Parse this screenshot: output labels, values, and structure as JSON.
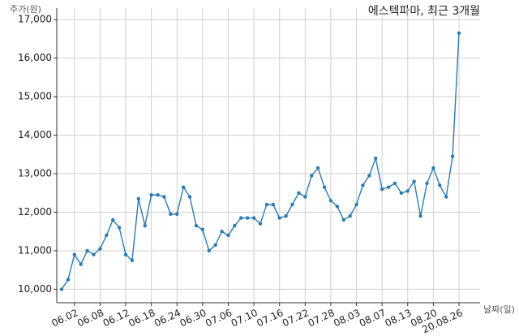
{
  "chart_data": {
    "type": "line",
    "title": "에스텍파마, 최근 3개월",
    "y_label": "주가(원)",
    "x_label": "날짜(일)",
    "categories": [
      null,
      null,
      "06.02",
      null,
      null,
      null,
      "06.08",
      null,
      null,
      null,
      "06.12",
      null,
      null,
      null,
      "06.18",
      null,
      null,
      null,
      "06.24",
      null,
      null,
      null,
      "06.30",
      null,
      null,
      null,
      "07.06",
      null,
      null,
      null,
      "07.10",
      null,
      null,
      null,
      "07.16",
      null,
      null,
      null,
      "07.22",
      null,
      null,
      null,
      "07.28",
      null,
      null,
      null,
      "08.03",
      null,
      null,
      null,
      "08.07",
      null,
      null,
      null,
      "08.13",
      null,
      null,
      null,
      "08.20",
      null,
      null,
      null,
      "20.08.26"
    ],
    "series": [
      {
        "name": "주가",
        "color": "#2b7bb0",
        "values": [
          10000,
          10250,
          10900,
          10650,
          11000,
          10900,
          11050,
          11400,
          11800,
          11600,
          10900,
          10750,
          12350,
          11650,
          12450,
          12450,
          12400,
          11950,
          11950,
          12650,
          12400,
          11650,
          11550,
          11000,
          11150,
          11500,
          11400,
          11650,
          11850,
          11850,
          11850,
          11700,
          12200,
          12200,
          11850,
          11900,
          12200,
          12500,
          12400,
          12950,
          13150,
          12650,
          12300,
          12150,
          11800,
          11900,
          12200,
          12700,
          12950,
          13400,
          12600,
          12650,
          12750,
          12500,
          12550,
          12800,
          11900,
          12750,
          13150,
          12700,
          12400,
          13450,
          16650
        ]
      }
    ],
    "ylim": [
      9650,
      17300
    ],
    "yticks": [
      {
        "value": 10000,
        "label": "10,000"
      },
      {
        "value": 11000,
        "label": "11,000"
      },
      {
        "value": 12000,
        "label": "12,000"
      },
      {
        "value": 13000,
        "label": "13,000"
      },
      {
        "value": 14000,
        "label": "14,000"
      },
      {
        "value": 15000,
        "label": "15,000"
      },
      {
        "value": 16000,
        "label": "16,000"
      },
      {
        "value": 17000,
        "label": "17,000"
      }
    ],
    "grid": true
  }
}
